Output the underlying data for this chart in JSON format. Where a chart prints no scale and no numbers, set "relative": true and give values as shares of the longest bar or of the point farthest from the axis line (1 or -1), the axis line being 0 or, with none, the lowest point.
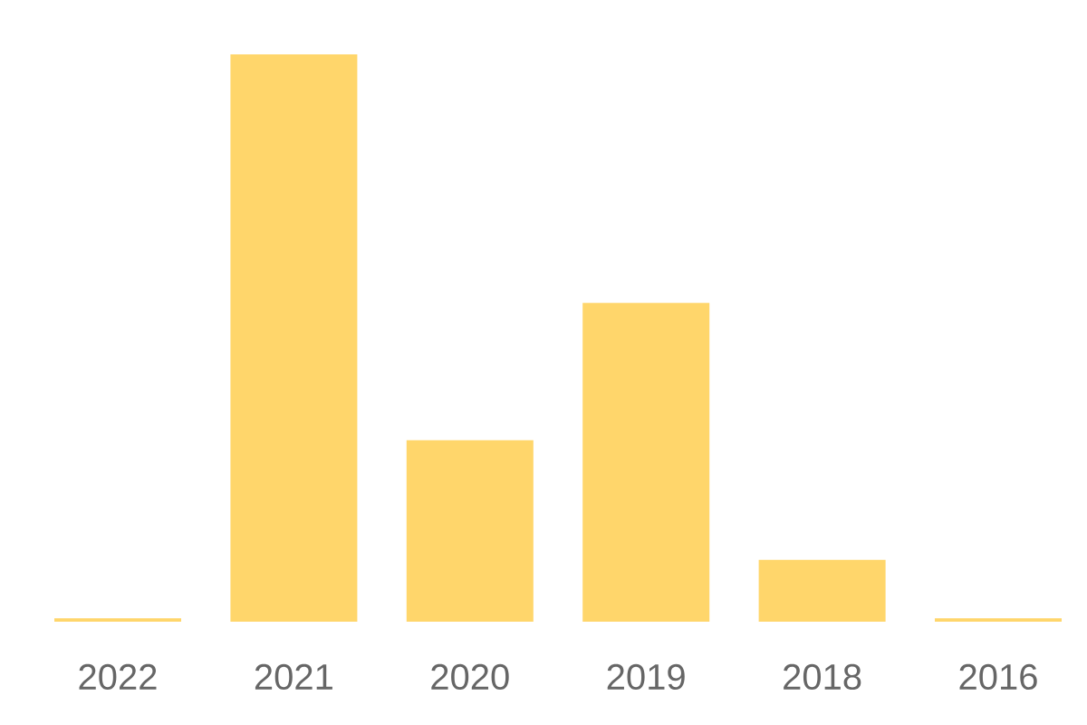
{
  "chart_data": {
    "type": "bar",
    "relative": true,
    "color": "#ffd66b",
    "categories": [
      "2022",
      "2021",
      "2020",
      "2019",
      "2018",
      "2016"
    ],
    "values": [
      0.006,
      1,
      0.32,
      0.562,
      0.109,
      0.006
    ]
  }
}
